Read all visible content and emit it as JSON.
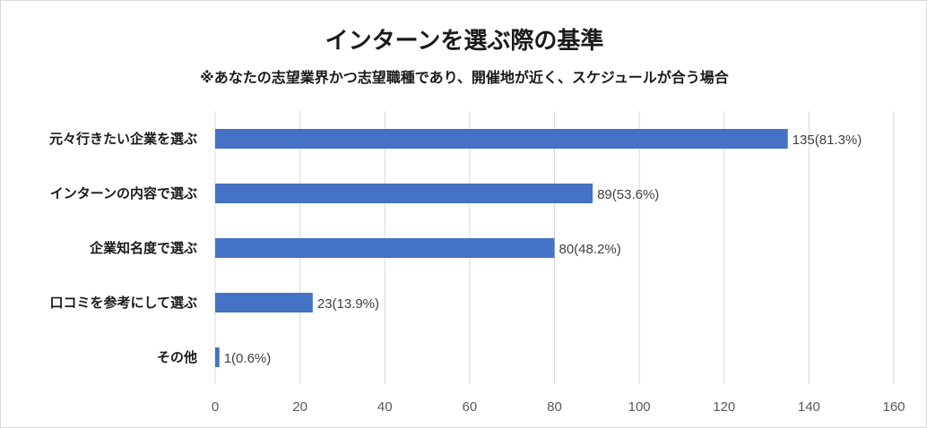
{
  "chart_data": {
    "type": "bar",
    "orientation": "horizontal",
    "title": "インターンを選ぶ際の基準",
    "subtitle": "※あなたの志望業界かつ志望職種であり、開催地が近く、スケジュールが合う場合",
    "categories": [
      "元々行きたい企業を選ぶ",
      "インターンの内容で選ぶ",
      "企業知名度で選ぶ",
      "口コミを参考にして選ぶ",
      "その他"
    ],
    "values": [
      135,
      89,
      80,
      23,
      1
    ],
    "data_labels": [
      "135(81.3%)",
      "89(53.6%)",
      "80(48.2%)",
      "23(13.9%)",
      "1(0.6%)"
    ],
    "xlim": [
      0,
      160
    ],
    "x_ticks": [
      0,
      20,
      40,
      60,
      80,
      100,
      120,
      140,
      160
    ],
    "xlabel": "",
    "ylabel": "",
    "grid": true,
    "bar_color": "#4472c4",
    "grid_color": "#d9d9d9"
  }
}
